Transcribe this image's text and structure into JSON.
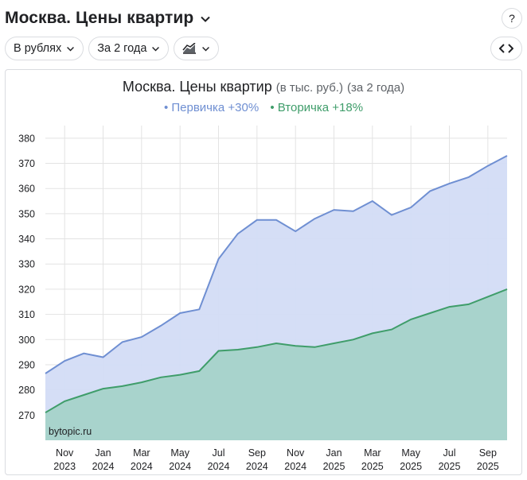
{
  "header": {
    "title": "Москва. Цены квартир",
    "help_label": "?"
  },
  "toolbar": {
    "currency_label": "В рублях",
    "period_label": "За 2 года"
  },
  "chart_title": {
    "main": "Москва. Цены квартир",
    "units": "(в тыс. руб.)",
    "period": "(за 2 года)"
  },
  "legend": {
    "primary": "• Первичка +30%",
    "secondary": "• Вторичка +18%"
  },
  "watermark": "bytopic.ru",
  "colors": {
    "primary_line": "#6f8fd2",
    "primary_fill": "#d3dcf6",
    "secondary_line": "#3f9d6a",
    "secondary_fill": "#a8d3cc"
  },
  "chart_data": {
    "type": "area",
    "title": "Москва. Цены квартир (в тыс. руб.) (за 2 года)",
    "x_labels": [
      {
        "month": "Nov",
        "year": "2023"
      },
      {
        "month": "Jan",
        "year": "2024"
      },
      {
        "month": "Mar",
        "year": "2024"
      },
      {
        "month": "May",
        "year": "2024"
      },
      {
        "month": "Jul",
        "year": "2024"
      },
      {
        "month": "Sep",
        "year": "2024"
      },
      {
        "month": "Nov",
        "year": "2024"
      },
      {
        "month": "Jan",
        "year": "2025"
      },
      {
        "month": "Mar",
        "year": "2025"
      },
      {
        "month": "May",
        "year": "2025"
      },
      {
        "month": "Jul",
        "year": "2025"
      },
      {
        "month": "Sep",
        "year": "2025"
      }
    ],
    "yticks": [
      270,
      280,
      290,
      300,
      310,
      320,
      330,
      340,
      350,
      360,
      370,
      380
    ],
    "ylim": [
      260,
      385
    ],
    "grid": true,
    "series": [
      {
        "name": "Первичка",
        "change": "+30%",
        "values": [
          286.5,
          291.5,
          294.5,
          293,
          299,
          301,
          305.5,
          310.5,
          312,
          332,
          342,
          347.5,
          347.5,
          343,
          348,
          351.5,
          351,
          355,
          349.5,
          352.5,
          359,
          362,
          364.5,
          369,
          373
        ]
      },
      {
        "name": "Вторичка",
        "change": "+18%",
        "values": [
          271,
          275.5,
          278,
          280.5,
          281.5,
          283,
          285,
          286,
          287.5,
          295.5,
          296,
          297,
          298.5,
          297.5,
          297,
          298.5,
          300,
          302.5,
          304,
          308,
          310.5,
          313,
          314,
          317,
          320
        ]
      }
    ]
  }
}
